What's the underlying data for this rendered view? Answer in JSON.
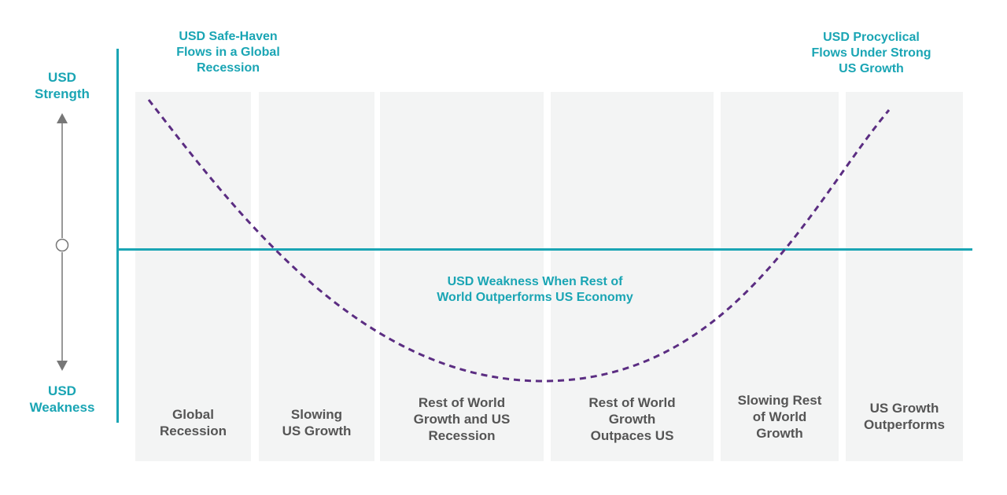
{
  "y_axis": {
    "top_label": "USD\nStrength",
    "bottom_label": "USD\nWeakness"
  },
  "annotations": {
    "left": "USD Safe-Haven\nFlows in a Global\nRecession",
    "right": "USD Procyclical\nFlows Under Strong\nUS Growth",
    "middle": "USD Weakness When Rest of\nWorld Outperforms US Economy"
  },
  "phases": [
    {
      "label": "Global\nRecession"
    },
    {
      "label": "Slowing\nUS Growth"
    },
    {
      "label": "Rest of World\nGrowth and US\nRecession"
    },
    {
      "label": "Rest of World\nGrowth\nOutpaces US"
    },
    {
      "label": "Slowing Rest\nof World\nGrowth"
    },
    {
      "label": "US Growth\nOutperforms"
    }
  ],
  "colors": {
    "accent": "#1aa5b4",
    "curve": "#5b2d82",
    "panel": "#f3f4f4",
    "panel_text": "#555555",
    "arrow": "#777777"
  }
}
